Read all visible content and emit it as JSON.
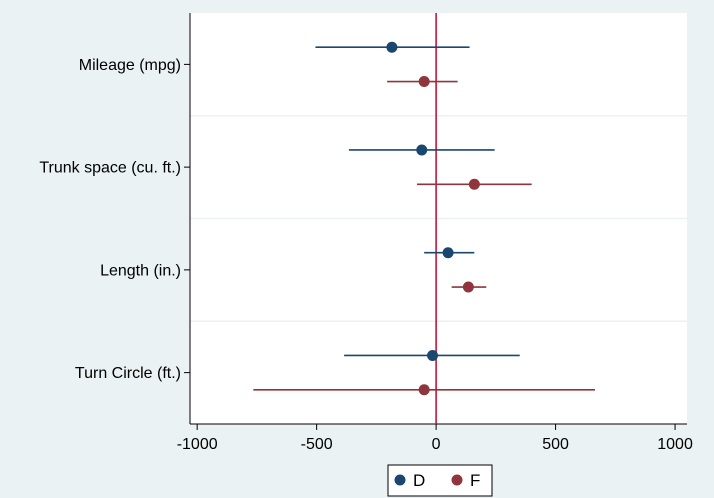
{
  "chart_data": {
    "type": "scatter",
    "subtype": "coefficient-plot-with-confidence-intervals",
    "title": "",
    "xlabel": "",
    "ylabel": "",
    "categories": [
      "Mileage (mpg)",
      "Trunk space (cu. ft.)",
      "Length (in.)",
      "Turn Circle (ft.)"
    ],
    "x_ticks": [
      "-1000",
      "-500",
      "0",
      "500",
      "1000"
    ],
    "xlim": [
      -1030,
      1050
    ],
    "reference_line": {
      "x": 0,
      "color": "#c0163a"
    },
    "grid": "horizontal separators between categories",
    "legend_position": "bottom-center",
    "series": [
      {
        "name": "D",
        "color": "#1a476f",
        "points": [
          {
            "category": "Mileage (mpg)",
            "estimate": -185,
            "ci_low": -505,
            "ci_high": 140
          },
          {
            "category": "Trunk space (cu. ft.)",
            "estimate": -60,
            "ci_low": -365,
            "ci_high": 245
          },
          {
            "category": "Length (in.)",
            "estimate": 50,
            "ci_low": -50,
            "ci_high": 160
          },
          {
            "category": "Turn Circle (ft.)",
            "estimate": -15,
            "ci_low": -385,
            "ci_high": 350
          }
        ]
      },
      {
        "name": "F",
        "color": "#90353b",
        "points": [
          {
            "category": "Mileage (mpg)",
            "estimate": -50,
            "ci_low": -205,
            "ci_high": 90
          },
          {
            "category": "Trunk space (cu. ft.)",
            "estimate": 160,
            "ci_low": -80,
            "ci_high": 400
          },
          {
            "category": "Length (in.)",
            "estimate": 135,
            "ci_low": 65,
            "ci_high": 210
          },
          {
            "category": "Turn Circle (ft.)",
            "estimate": -50,
            "ci_low": -765,
            "ci_high": 665
          }
        ]
      }
    ]
  },
  "legend": {
    "items": [
      {
        "label": "D",
        "color": "#1a476f"
      },
      {
        "label": "F",
        "color": "#90353b"
      }
    ]
  }
}
